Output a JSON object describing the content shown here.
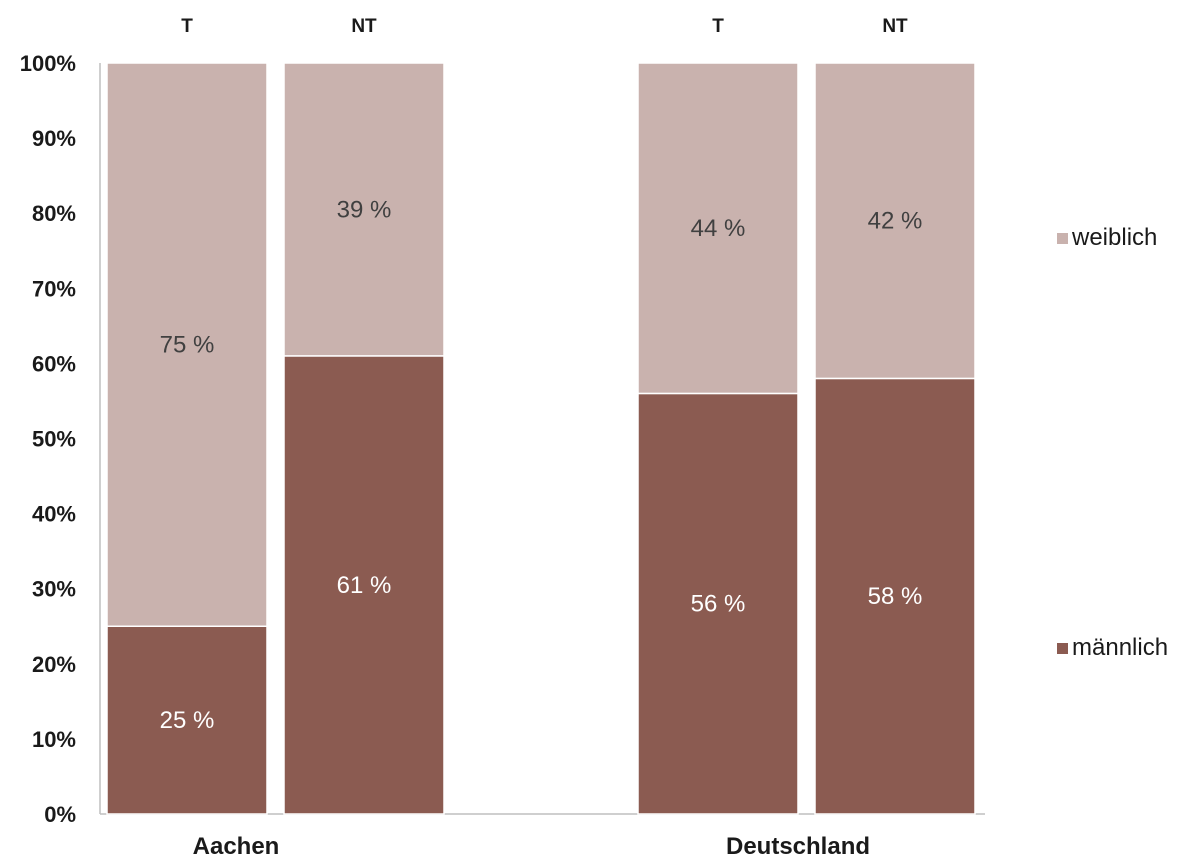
{
  "chart_data": {
    "type": "bar",
    "stacked": true,
    "normalized": true,
    "ylim": [
      0,
      100
    ],
    "y_ticks": [
      0,
      10,
      20,
      30,
      40,
      50,
      60,
      70,
      80,
      90,
      100
    ],
    "y_tick_labels": [
      "0%",
      "10%",
      "20%",
      "30%",
      "40%",
      "50%",
      "60%",
      "70%",
      "80%",
      "90%",
      "100%"
    ],
    "groups": [
      "Aachen",
      "Deutschland"
    ],
    "subgroups": [
      "T",
      "NT"
    ],
    "categories": [
      "T",
      "NT",
      "T",
      "NT"
    ],
    "series": [
      {
        "name": "männlich",
        "color": "#8b5b51",
        "label_color": "#ffffff",
        "values": [
          25,
          61,
          56,
          58
        ],
        "labels": [
          "25 %",
          "61 %",
          "56 %",
          "58 %"
        ]
      },
      {
        "name": "weiblich",
        "color": "#c9b2ae",
        "label_color": "#404040",
        "values": [
          75,
          39,
          44,
          42
        ],
        "labels": [
          "75 %",
          "39 %",
          "44 %",
          "42 %"
        ]
      }
    ],
    "legend_position": "right",
    "grid": false
  }
}
